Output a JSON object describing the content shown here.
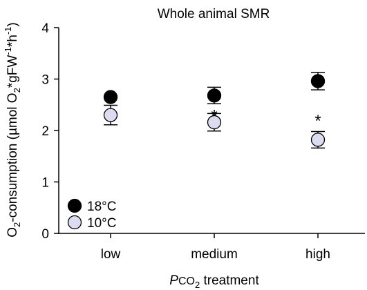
{
  "chart_data": {
    "type": "scatter",
    "title": "Whole animal SMR",
    "ylabel_parts": {
      "o": "O",
      "o_sub": "2",
      "rest1": "-consumption (µmol O",
      "o2_sub": "2",
      "rest2": "*gFW",
      "sup1": "-1",
      "rest3": "*h",
      "sup2": "-1",
      "rest4": ")"
    },
    "xlabel_parts": {
      "p": "P",
      "co": "CO",
      "sub": "2",
      "rest": " treatment"
    },
    "categories": [
      "low",
      "medium",
      "high"
    ],
    "ylim": [
      0,
      4
    ],
    "yticks": [
      "0",
      "1",
      "2",
      "3",
      "4"
    ],
    "series": [
      {
        "name": "18°C",
        "color": "#000000",
        "values": [
          2.65,
          2.68,
          2.96
        ],
        "errors": [
          0.0,
          0.16,
          0.17
        ]
      },
      {
        "name": "10°C",
        "color": "#dcdcf0",
        "values": [
          2.3,
          2.16,
          1.82
        ],
        "errors": [
          0.19,
          0.17,
          0.16
        ]
      }
    ],
    "annotations": [
      {
        "category": "medium",
        "text": "*",
        "y": 2.37
      },
      {
        "category": "high",
        "text": "*",
        "y": 2.27
      }
    ],
    "legend_position": "bottom-left"
  }
}
